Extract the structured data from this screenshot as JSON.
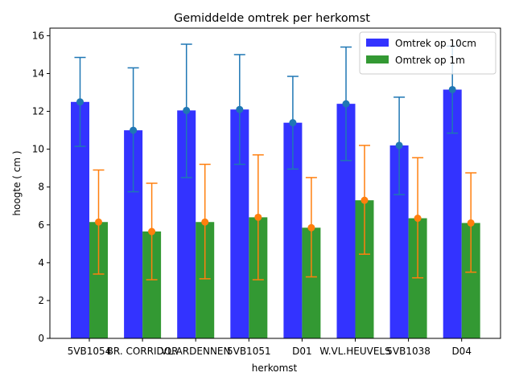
{
  "chart_data": {
    "type": "bar",
    "title": "Gemiddelde omtrek per herkomst",
    "xlabel": "herkomst",
    "ylabel": "hoogte ( cm )",
    "ylim": [
      0,
      16.4
    ],
    "yticks": [
      0,
      2,
      4,
      6,
      8,
      10,
      12,
      14,
      16
    ],
    "grid": false,
    "legend_position": "top-right",
    "categories": [
      "5VB1054",
      "BR. CORRIDOR",
      "VL.ARDENNEN",
      "5VB1051",
      "D01",
      "W.VL.HEUVELS",
      "5VB1038",
      "D04"
    ],
    "series": [
      {
        "name": "Omtrek op 10cm",
        "bar_color": "#3333ff",
        "marker_color": "#1f77b4",
        "values": [
          12.5,
          11.0,
          12.05,
          12.1,
          11.4,
          12.4,
          10.2,
          13.15
        ],
        "err_low": [
          10.15,
          7.75,
          8.5,
          9.2,
          8.95,
          9.4,
          7.6,
          10.85
        ],
        "err_high": [
          14.85,
          14.3,
          15.55,
          15.0,
          13.85,
          15.4,
          12.75,
          15.45
        ]
      },
      {
        "name": "Omtrek op 1m",
        "bar_color": "#339933",
        "marker_color": "#ff7f0e",
        "values": [
          6.15,
          5.65,
          6.15,
          6.4,
          5.85,
          7.3,
          6.35,
          6.1
        ],
        "err_low": [
          3.4,
          3.1,
          3.15,
          3.1,
          3.25,
          4.45,
          3.2,
          3.5
        ],
        "err_high": [
          8.9,
          8.2,
          9.2,
          9.7,
          8.5,
          10.2,
          9.55,
          8.75
        ]
      }
    ]
  }
}
